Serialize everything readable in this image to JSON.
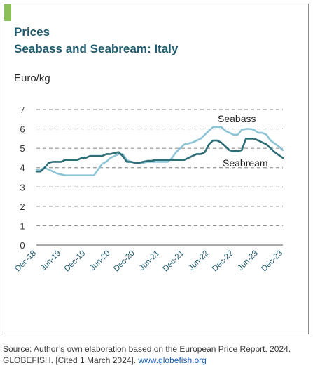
{
  "header": {
    "title": "Prices",
    "subtitle": "Seabass and Seabream: Italy"
  },
  "chart_data": {
    "type": "line",
    "title": "Prices",
    "subtitle": "Seabass and Seabream: Italy",
    "ylabel": "Euro/kg",
    "xlabel": "",
    "ylim": [
      0,
      7
    ],
    "yticks": [
      0,
      1,
      2,
      3,
      4,
      5,
      6,
      7
    ],
    "grid": true,
    "x_tick_labels": [
      "Dec-18",
      "Jun-19",
      "Dec-19",
      "Jun-20",
      "Dec-20",
      "Jun-21",
      "Dec-21",
      "Jun-22",
      "Dec-22",
      "Jun-23",
      "Dec-23"
    ],
    "x": [
      "Dec-18",
      "Jan-19",
      "Feb-19",
      "Mar-19",
      "Apr-19",
      "May-19",
      "Jun-19",
      "Jul-19",
      "Aug-19",
      "Sep-19",
      "Oct-19",
      "Nov-19",
      "Dec-19",
      "Jan-20",
      "Feb-20",
      "Mar-20",
      "Apr-20",
      "May-20",
      "Jun-20",
      "Jul-20",
      "Aug-20",
      "Sep-20",
      "Oct-20",
      "Nov-20",
      "Dec-20",
      "Jan-21",
      "Feb-21",
      "Mar-21",
      "Apr-21",
      "May-21",
      "Jun-21",
      "Jul-21",
      "Aug-21",
      "Sep-21",
      "Oct-21",
      "Nov-21",
      "Dec-21",
      "Jan-22",
      "Feb-22",
      "Mar-22",
      "Apr-22",
      "May-22",
      "Jun-22",
      "Jul-22",
      "Aug-22",
      "Sep-22",
      "Oct-22",
      "Nov-22",
      "Dec-22",
      "Jan-23",
      "Feb-23",
      "Mar-23",
      "Apr-23",
      "May-23",
      "Jun-23",
      "Jul-23",
      "Aug-23",
      "Sep-23",
      "Oct-23",
      "Nov-23",
      "Dec-23"
    ],
    "series": [
      {
        "name": "Seabass",
        "color": "#8ec5d6",
        "values": [
          3.9,
          3.9,
          4.0,
          3.9,
          3.8,
          3.7,
          3.65,
          3.6,
          3.6,
          3.6,
          3.6,
          3.6,
          3.6,
          3.6,
          3.6,
          3.9,
          4.2,
          4.3,
          4.5,
          4.6,
          4.7,
          4.7,
          4.4,
          4.3,
          4.25,
          4.25,
          4.25,
          4.3,
          4.3,
          4.3,
          4.3,
          4.3,
          4.3,
          4.5,
          4.8,
          5.0,
          5.2,
          5.25,
          5.3,
          5.4,
          5.5,
          5.7,
          5.9,
          6.1,
          6.1,
          6.1,
          5.9,
          5.8,
          5.7,
          5.7,
          5.95,
          6.0,
          6.0,
          5.95,
          5.8,
          5.8,
          5.7,
          5.4,
          5.25,
          5.1,
          4.9
        ]
      },
      {
        "name": "Seabream",
        "color": "#2e6e76",
        "values": [
          3.8,
          3.8,
          4.0,
          4.25,
          4.3,
          4.3,
          4.3,
          4.4,
          4.4,
          4.4,
          4.4,
          4.5,
          4.5,
          4.6,
          4.6,
          4.6,
          4.6,
          4.7,
          4.7,
          4.75,
          4.8,
          4.6,
          4.3,
          4.3,
          4.25,
          4.25,
          4.3,
          4.35,
          4.35,
          4.4,
          4.4,
          4.4,
          4.4,
          4.4,
          4.4,
          4.4,
          4.4,
          4.5,
          4.6,
          4.7,
          4.7,
          4.8,
          5.2,
          5.4,
          5.4,
          5.3,
          5.1,
          4.9,
          4.85,
          4.85,
          4.9,
          5.5,
          5.5,
          5.5,
          5.4,
          5.3,
          5.2,
          5.0,
          4.8,
          4.65,
          4.5
        ]
      }
    ],
    "annotations": [
      "Seabass",
      "Seabream"
    ]
  },
  "source": {
    "text": "Source: Author’s own elaboration based on the European Price Report. 2024. GLOBEFISH. [Cited 1 March 2024].",
    "link_text": "www.globefish.org"
  }
}
